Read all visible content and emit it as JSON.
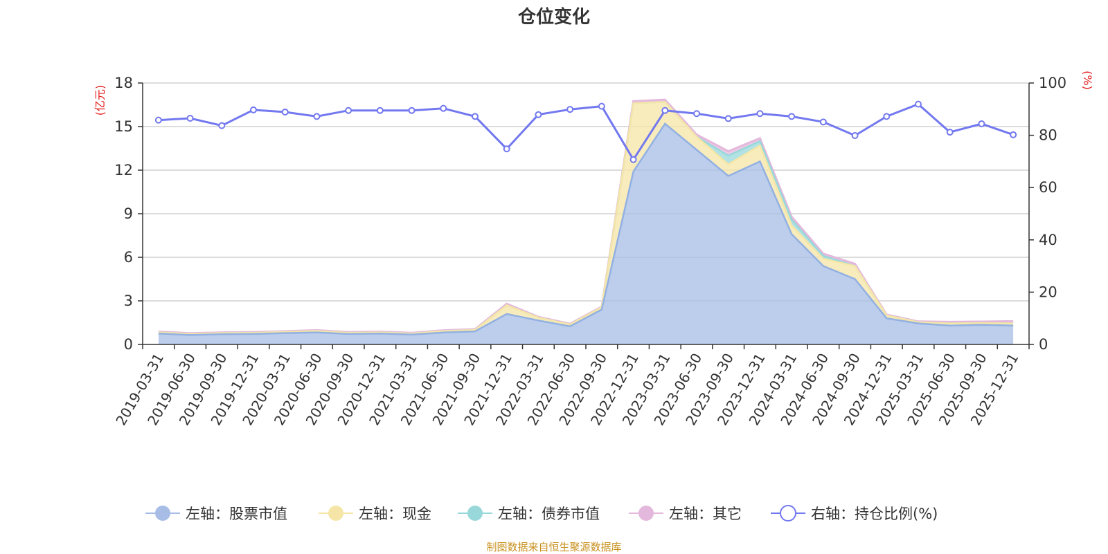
{
  "colors": {
    "stock": "#a7bde6",
    "stock_line": "#92b0e2",
    "cash": "#f5e6a7",
    "bond": "#98d8da",
    "other": "#e4b8dc",
    "ratio": "#7278ef",
    "axis_unit": "#e31b1b",
    "source": "#c8911e",
    "grid": "#c8c8c8"
  },
  "chart_data": {
    "type": "stacked-area+line",
    "title": "仓位变化",
    "left_axis_unit": "(亿元)",
    "right_axis_unit": "(%)",
    "ylim_left": [
      0,
      18
    ],
    "ylim_right": [
      0,
      100
    ],
    "yticks_left": [
      0,
      3,
      6,
      9,
      12,
      15,
      18
    ],
    "yticks_right": [
      0,
      20,
      40,
      60,
      80,
      100
    ],
    "categories": [
      "2019-03-31",
      "2019-06-30",
      "2019-09-30",
      "2019-12-31",
      "2020-03-31",
      "2020-06-30",
      "2020-09-30",
      "2020-12-31",
      "2021-03-31",
      "2021-06-30",
      "2021-09-30",
      "2021-12-31",
      "2022-03-31",
      "2022-06-30",
      "2022-09-30",
      "2022-12-31",
      "2023-03-31",
      "2023-06-30",
      "2023-09-30",
      "2023-12-31",
      "2024-03-31",
      "2024-06-30",
      "2024-09-30",
      "2024-12-31",
      "2025-03-31",
      "2025-06-30",
      "2025-09-30",
      "2025-12-31"
    ],
    "series": [
      {
        "name": "左轴：股票市值",
        "axis": "left",
        "kind": "area",
        "values": [
          0.75,
          0.65,
          0.7,
          0.72,
          0.78,
          0.83,
          0.72,
          0.75,
          0.68,
          0.82,
          0.9,
          2.1,
          1.65,
          1.25,
          2.4,
          11.9,
          15.2,
          13.4,
          11.6,
          12.6,
          7.6,
          5.4,
          4.5,
          1.8,
          1.45,
          1.3,
          1.35,
          1.3
        ]
      },
      {
        "name": "左轴：现金",
        "axis": "left",
        "kind": "area",
        "values": [
          0.08,
          0.07,
          0.08,
          0.08,
          0.08,
          0.1,
          0.08,
          0.08,
          0.07,
          0.1,
          0.1,
          0.6,
          0.2,
          0.12,
          0.15,
          4.7,
          1.5,
          0.9,
          0.8,
          1.1,
          0.6,
          0.5,
          0.9,
          0.2,
          0.08,
          0.15,
          0.12,
          0.15
        ]
      },
      {
        "name": "左轴：债券市值",
        "axis": "left",
        "kind": "area",
        "values": [
          0,
          0,
          0,
          0,
          0,
          0,
          0,
          0,
          0,
          0,
          0,
          0,
          0,
          0,
          0,
          0,
          0,
          0,
          0.6,
          0.3,
          0.4,
          0.2,
          0,
          0,
          0,
          0,
          0,
          0
        ]
      },
      {
        "name": "左轴：其它",
        "axis": "left",
        "kind": "area",
        "values": [
          0.05,
          0.05,
          0.05,
          0.05,
          0.05,
          0.05,
          0.05,
          0.05,
          0.05,
          0.05,
          0.05,
          0.1,
          0.05,
          0.05,
          0.05,
          0.15,
          0.15,
          0.15,
          0.3,
          0.2,
          0.2,
          0.15,
          0.15,
          0.05,
          0.05,
          0.1,
          0.1,
          0.15
        ]
      },
      {
        "name": "右轴：持仓比例(%)",
        "axis": "right",
        "kind": "line",
        "values": [
          85.8,
          86.5,
          83.7,
          89.7,
          88.9,
          87.2,
          89.5,
          89.5,
          89.5,
          90.3,
          87.2,
          74.8,
          87.9,
          89.9,
          91.1,
          70.7,
          89.5,
          88.3,
          86.4,
          88.3,
          87.2,
          85.1,
          79.9,
          87.2,
          91.9,
          81.2,
          84.4,
          80.2
        ]
      }
    ]
  },
  "source_note": "制图数据来自恒生聚源数据库"
}
